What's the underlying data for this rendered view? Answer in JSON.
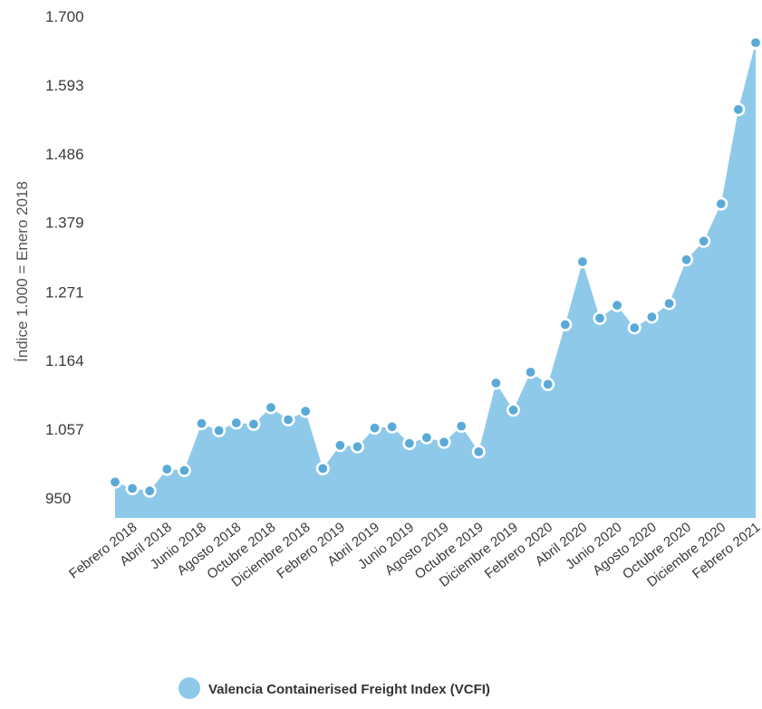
{
  "chart_data": {
    "type": "area",
    "ylabel": "Índice 1.000 = Enero 2018",
    "y_ticks": [
      "950",
      "1.057",
      "1.164",
      "1.271",
      "1.379",
      "1.486",
      "1.593",
      "1.700"
    ],
    "y_tick_values": [
      950,
      1057,
      1164,
      1271,
      1379,
      1486,
      1593,
      1700
    ],
    "ylim": [
      950,
      1700
    ],
    "grid": false,
    "legend_placement": "bottom-center",
    "x_tick_labels": [
      "Febrero 2018",
      "Abril 2018",
      "Junio 2018",
      "Agosto 2018",
      "Octubre 2018",
      "Diciembre 2018",
      "Febrero 2019",
      "Abril 2019",
      "Junio 2019",
      "Agosto 2019",
      "Octubre 2019",
      "Diciembre 2019",
      "Febrero 2020",
      "Abril 2020",
      "Junio 2020",
      "Agosto 2020",
      "Octubre 2020",
      "Diciembre 2020",
      "Febrero 2021"
    ],
    "color": "#8ec9ea",
    "series": [
      {
        "name": "Valencia Containerised Freight Index (VCFI)",
        "values": [
          975,
          965,
          961,
          995,
          993,
          1066,
          1055,
          1067,
          1065,
          1091,
          1072,
          1085,
          996,
          1032,
          1030,
          1059,
          1061,
          1035,
          1044,
          1037,
          1062,
          1022,
          1129,
          1087,
          1146,
          1127,
          1220,
          1318,
          1230,
          1250,
          1215,
          1232,
          1253,
          1321,
          1350,
          1408,
          1555,
          1659
        ]
      }
    ]
  }
}
